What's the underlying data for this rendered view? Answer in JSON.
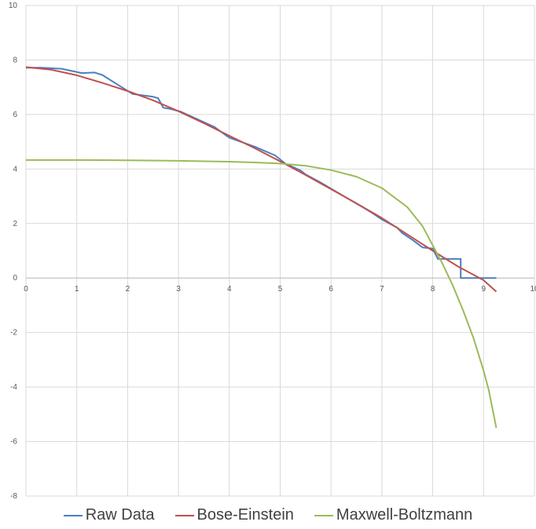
{
  "chart_data": {
    "type": "line",
    "xlim": [
      0,
      10
    ],
    "ylim": [
      -8,
      10
    ],
    "x_ticks": [
      "0",
      "1",
      "2",
      "3",
      "4",
      "5",
      "6",
      "7",
      "8",
      "9",
      "10"
    ],
    "y_ticks": [
      "10",
      "8",
      "6",
      "4",
      "2",
      "0",
      "-2",
      "-4",
      "-6",
      "-8"
    ],
    "grid": true,
    "legend_position": "bottom",
    "series": [
      {
        "name": "Raw Data",
        "color": "#4a7fc1",
        "points": [
          [
            0,
            7.72
          ],
          [
            0.3,
            7.72
          ],
          [
            0.7,
            7.68
          ],
          [
            1.1,
            7.52
          ],
          [
            1.35,
            7.54
          ],
          [
            1.5,
            7.45
          ],
          [
            1.8,
            7.1
          ],
          [
            2.1,
            6.75
          ],
          [
            2.5,
            6.65
          ],
          [
            2.6,
            6.6
          ],
          [
            2.7,
            6.25
          ],
          [
            2.85,
            6.2
          ],
          [
            3.05,
            6.1
          ],
          [
            3.4,
            5.8
          ],
          [
            3.7,
            5.55
          ],
          [
            4.0,
            5.15
          ],
          [
            4.5,
            4.82
          ],
          [
            4.9,
            4.5
          ],
          [
            5.1,
            4.2
          ],
          [
            5.4,
            3.95
          ],
          [
            5.5,
            3.8
          ],
          [
            5.8,
            3.5
          ],
          [
            6.0,
            3.28
          ],
          [
            6.2,
            3.06
          ],
          [
            6.4,
            2.84
          ],
          [
            6.6,
            2.62
          ],
          [
            6.8,
            2.4
          ],
          [
            7.0,
            2.15
          ],
          [
            7.2,
            1.95
          ],
          [
            7.3,
            1.85
          ],
          [
            7.4,
            1.65
          ],
          [
            7.6,
            1.4
          ],
          [
            7.8,
            1.12
          ],
          [
            8.0,
            1.08
          ],
          [
            8.1,
            0.7
          ],
          [
            8.55,
            0.7
          ],
          [
            8.55,
            0.0
          ],
          [
            9.25,
            0.0
          ]
        ]
      },
      {
        "name": "Bose-Einstein",
        "color": "#c0504d",
        "points": [
          [
            0,
            7.74
          ],
          [
            0.5,
            7.64
          ],
          [
            1,
            7.44
          ],
          [
            1.5,
            7.16
          ],
          [
            2,
            6.86
          ],
          [
            2.5,
            6.52
          ],
          [
            3,
            6.12
          ],
          [
            3.5,
            5.68
          ],
          [
            4,
            5.22
          ],
          [
            4.5,
            4.76
          ],
          [
            5,
            4.28
          ],
          [
            5.5,
            3.78
          ],
          [
            6,
            3.26
          ],
          [
            6.5,
            2.74
          ],
          [
            7,
            2.2
          ],
          [
            7.5,
            1.6
          ],
          [
            8,
            1.0
          ],
          [
            8.5,
            0.42
          ],
          [
            9,
            -0.08
          ],
          [
            9.25,
            -0.5
          ]
        ]
      },
      {
        "name": "Maxwell-Boltzmann",
        "color": "#9bbb59",
        "points": [
          [
            0,
            4.33
          ],
          [
            1,
            4.33
          ],
          [
            2,
            4.32
          ],
          [
            3,
            4.3
          ],
          [
            4,
            4.27
          ],
          [
            4.5,
            4.24
          ],
          [
            5,
            4.2
          ],
          [
            5.5,
            4.12
          ],
          [
            6,
            3.96
          ],
          [
            6.5,
            3.72
          ],
          [
            7,
            3.3
          ],
          [
            7.5,
            2.6
          ],
          [
            7.8,
            1.9
          ],
          [
            8,
            1.2
          ],
          [
            8.2,
            0.5
          ],
          [
            8.4,
            -0.3
          ],
          [
            8.6,
            -1.2
          ],
          [
            8.8,
            -2.2
          ],
          [
            9,
            -3.4
          ],
          [
            9.1,
            -4.1
          ],
          [
            9.25,
            -5.5
          ]
        ]
      }
    ]
  }
}
